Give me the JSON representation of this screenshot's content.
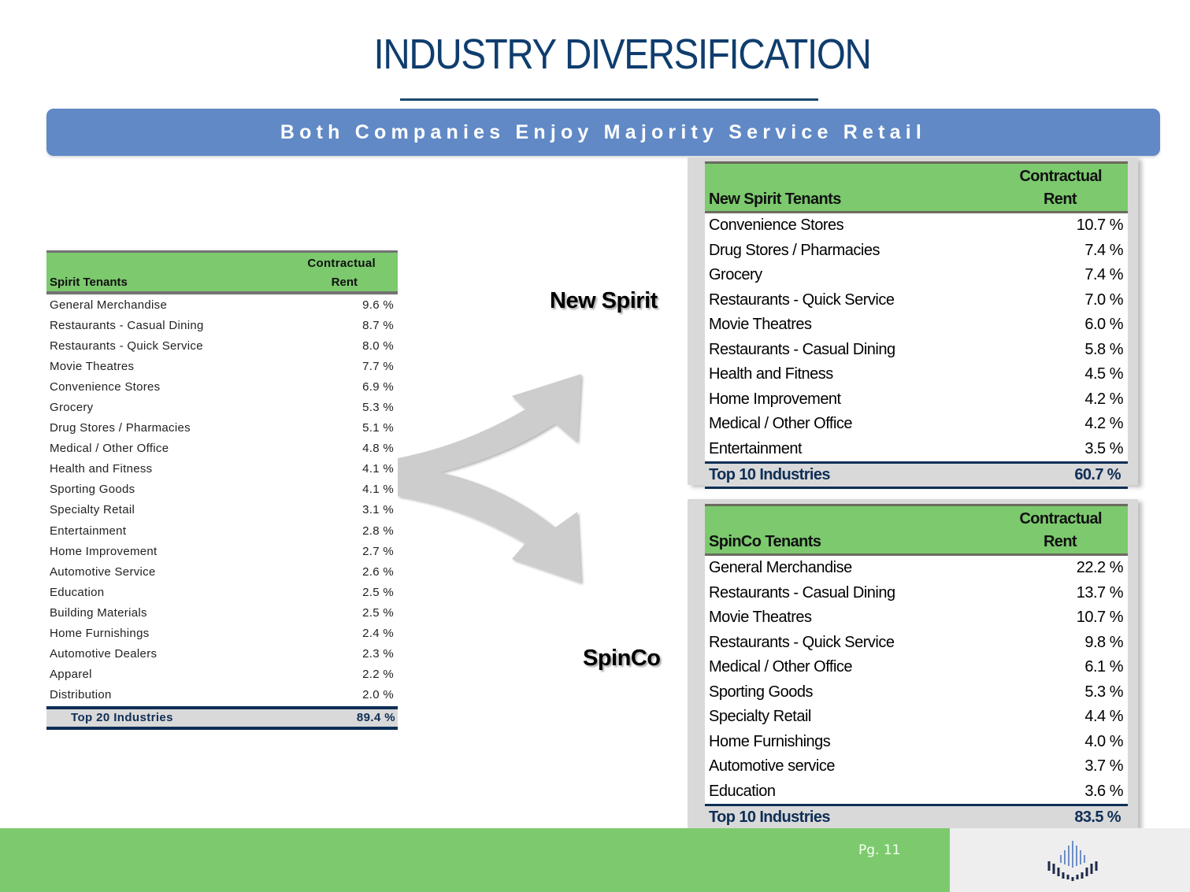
{
  "page": {
    "title": "INDUSTRY DIVERSIFICATION",
    "banner": "Both Companies Enjoy Majority Service Retail",
    "page_number": "Pg. 11"
  },
  "colors": {
    "title": "#0f3d6e",
    "banner": "#6189c6",
    "header_green": "#7cc96e",
    "total_navy": "#0e2e56",
    "footer_green": "#7dca6e"
  },
  "spirit": {
    "col1_header": "Spirit Tenants",
    "col2_header_line1": "Contractual",
    "col2_header_line2": "Rent",
    "rows": [
      {
        "name": "General Merchandise",
        "value": "9.6 %"
      },
      {
        "name": "Restaurants - Casual Dining",
        "value": "8.7 %"
      },
      {
        "name": "Restaurants - Quick Service",
        "value": "8.0 %"
      },
      {
        "name": "Movie Theatres",
        "value": "7.7 %"
      },
      {
        "name": "Convenience Stores",
        "value": "6.9 %"
      },
      {
        "name": "Grocery",
        "value": "5.3 %"
      },
      {
        "name": "Drug Stores / Pharmacies",
        "value": "5.1 %"
      },
      {
        "name": "Medical / Other Office",
        "value": "4.8 %"
      },
      {
        "name": "Health and Fitness",
        "value": "4.1 %"
      },
      {
        "name": "Sporting Goods",
        "value": "4.1 %"
      },
      {
        "name": "Specialty Retail",
        "value": "3.1 %"
      },
      {
        "name": "Entertainment",
        "value": "2.8 %"
      },
      {
        "name": "Home Improvement",
        "value": "2.7 %"
      },
      {
        "name": "Automotive Service",
        "value": "2.6 %"
      },
      {
        "name": "Education",
        "value": "2.5 %"
      },
      {
        "name": "Building Materials",
        "value": "2.5 %"
      },
      {
        "name": "Home Furnishings",
        "value": "2.4 %"
      },
      {
        "name": "Automotive Dealers",
        "value": "2.3 %"
      },
      {
        "name": "Apparel",
        "value": "2.2 %"
      },
      {
        "name": "Distribution",
        "value": "2.0 %"
      }
    ],
    "total": {
      "name": "Top 20 Industries",
      "value": "89.4 %"
    }
  },
  "labels": {
    "new_spirit": "New Spirit",
    "spinco": "SpinCo"
  },
  "new_spirit": {
    "col1_header": "New Spirit Tenants",
    "col2_header_line1": "Contractual",
    "col2_header_line2": "Rent",
    "rows": [
      {
        "name": "Convenience Stores",
        "value": "10.7 %"
      },
      {
        "name": "Drug Stores / Pharmacies",
        "value": "7.4 %"
      },
      {
        "name": "Grocery",
        "value": "7.4 %"
      },
      {
        "name": "Restaurants - Quick Service",
        "value": "7.0 %"
      },
      {
        "name": "Movie Theatres",
        "value": "6.0 %"
      },
      {
        "name": "Restaurants - Casual Dining",
        "value": "5.8 %"
      },
      {
        "name": "Health and Fitness",
        "value": "4.5 %"
      },
      {
        "name": "Home Improvement",
        "value": "4.2 %"
      },
      {
        "name": "Medical / Other Office",
        "value": "4.2 %"
      },
      {
        "name": "Entertainment",
        "value": "3.5 %"
      }
    ],
    "total": {
      "name": "Top 10 Industries",
      "value": "60.7 %"
    }
  },
  "spinco": {
    "col1_header": "SpinCo Tenants",
    "col2_header_line1": "Contractual",
    "col2_header_line2": "Rent",
    "rows": [
      {
        "name": "General Merchandise",
        "value": "22.2 %"
      },
      {
        "name": "Restaurants - Casual Dining",
        "value": "13.7 %"
      },
      {
        "name": "Movie Theatres",
        "value": "10.7 %"
      },
      {
        "name": "Restaurants - Quick Service",
        "value": "9.8 %"
      },
      {
        "name": "Medical / Other Office",
        "value": "6.1 %"
      },
      {
        "name": "Sporting Goods",
        "value": "5.3 %"
      },
      {
        "name": "Specialty Retail",
        "value": "4.4 %"
      },
      {
        "name": "Home Furnishings",
        "value": "4.0 %"
      },
      {
        "name": "Automotive service",
        "value": "3.7 %"
      },
      {
        "name": "Education",
        "value": "3.6 %"
      }
    ],
    "total": {
      "name": "Top 10 Industries",
      "value": "83.5 %"
    }
  }
}
